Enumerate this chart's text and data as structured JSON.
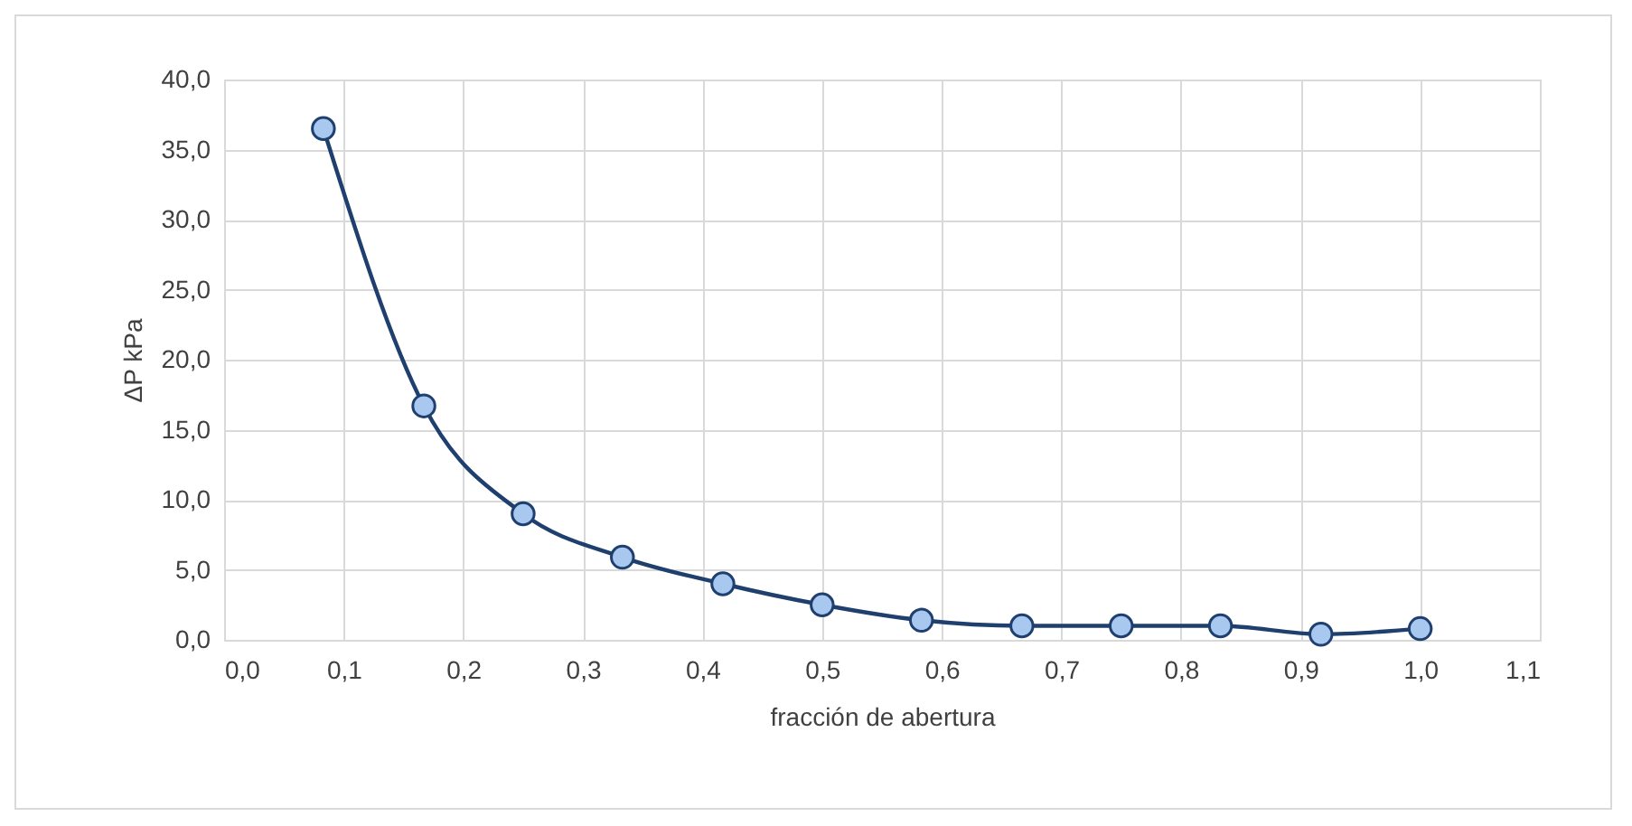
{
  "chart_data": {
    "type": "line",
    "xlabel": "fracción de abertura",
    "ylabel": "ΔP kPa",
    "x": [
      0.083,
      0.167,
      0.25,
      0.333,
      0.417,
      0.5,
      0.583,
      0.667,
      0.75,
      0.833,
      0.917,
      1.0
    ],
    "series": [
      {
        "color": "#1f3f6e",
        "values": [
          36.5,
          16.7,
          9.0,
          5.9,
          4.0,
          2.5,
          1.4,
          1.0,
          1.0,
          1.0,
          0.4,
          0.8
        ]
      }
    ],
    "xlim": [
      0,
      1.1
    ],
    "ylim": [
      0,
      40
    ],
    "xticks": [
      {
        "value": 0,
        "label": "0,0"
      },
      {
        "value": 0.1,
        "label": "0,1"
      },
      {
        "value": 0.2,
        "label": "0,2"
      },
      {
        "value": 0.3,
        "label": "0,3"
      },
      {
        "value": 0.4,
        "label": "0,4"
      },
      {
        "value": 0.5,
        "label": "0,5"
      },
      {
        "value": 0.6,
        "label": "0,6"
      },
      {
        "value": 0.7,
        "label": "0,7"
      },
      {
        "value": 0.8,
        "label": "0,8"
      },
      {
        "value": 0.9,
        "label": "0,9"
      },
      {
        "value": 1.0,
        "label": "1,0"
      },
      {
        "value": 1.1,
        "label": "1,1"
      }
    ],
    "yticks": [
      {
        "value": 0,
        "label": "0,0"
      },
      {
        "value": 5,
        "label": "5,0"
      },
      {
        "value": 10,
        "label": "10,0"
      },
      {
        "value": 15,
        "label": "15,0"
      },
      {
        "value": 20,
        "label": "20,0"
      },
      {
        "value": 25,
        "label": "25,0"
      },
      {
        "value": 30,
        "label": "30,0"
      },
      {
        "value": 35,
        "label": "35,0"
      },
      {
        "value": 40,
        "label": "40,0"
      }
    ],
    "grid": true,
    "marker": "circle",
    "line_style": "solid"
  }
}
